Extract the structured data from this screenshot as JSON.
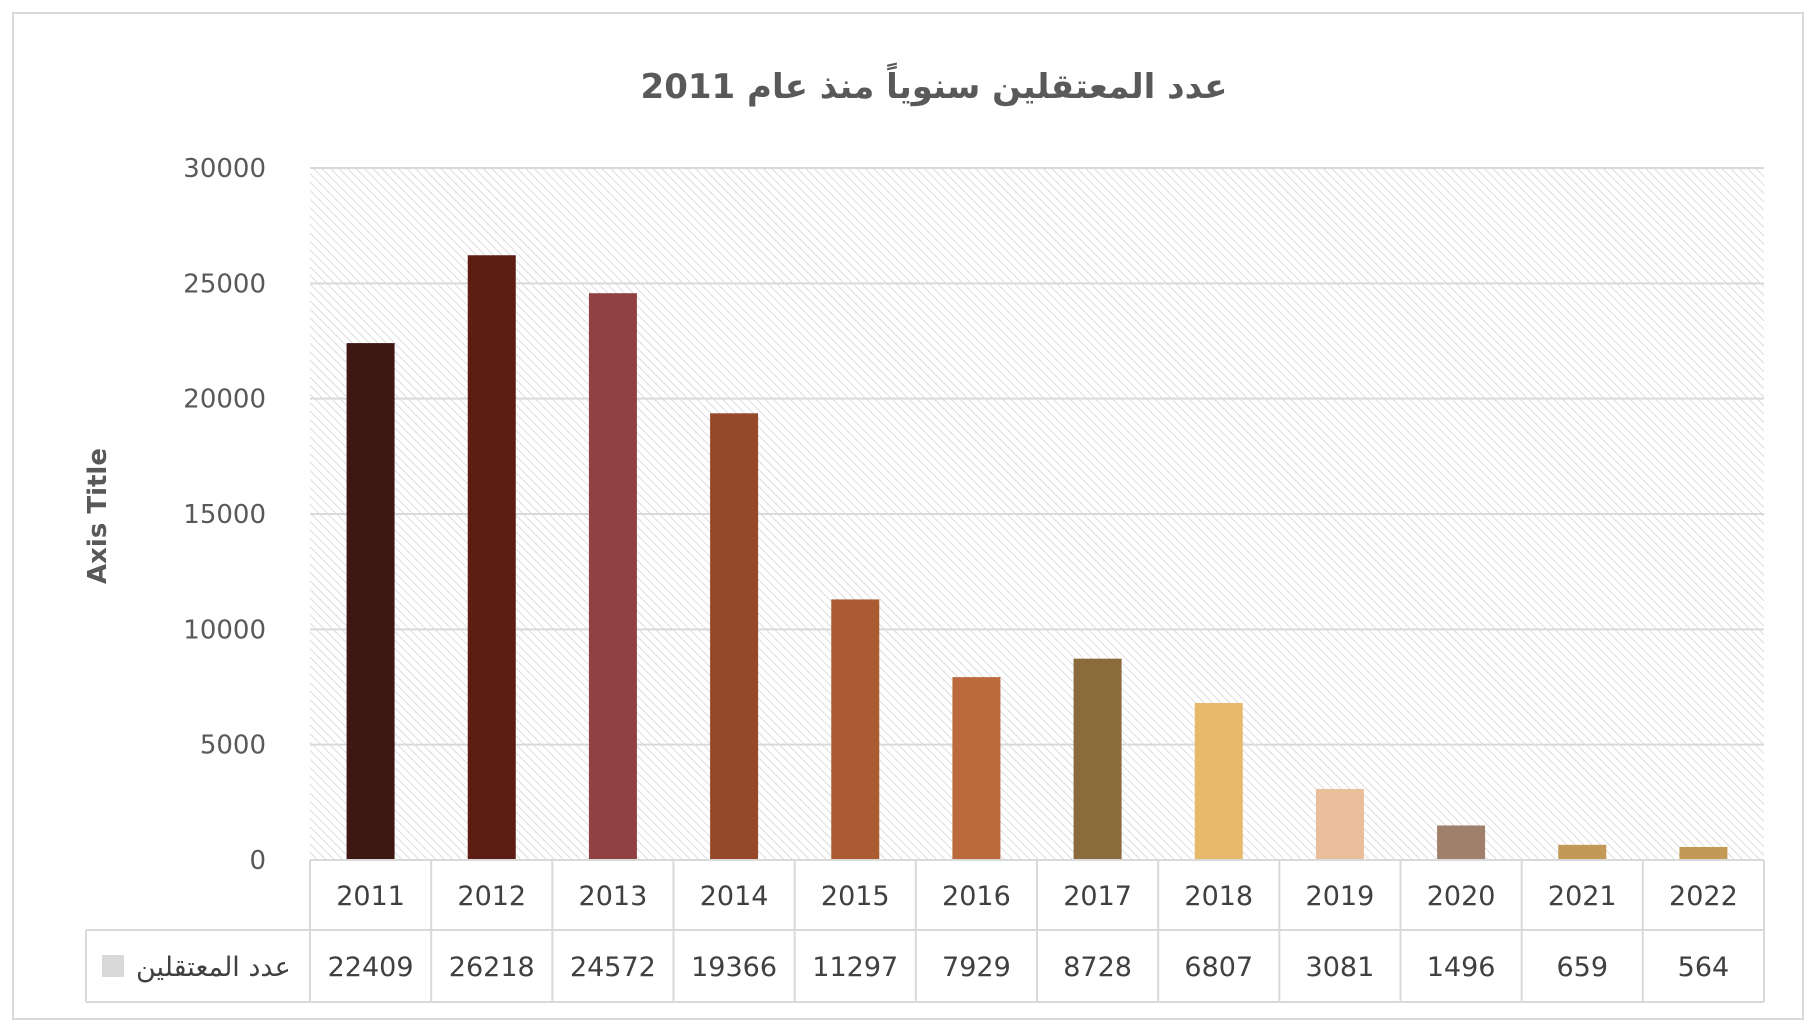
{
  "chart_data": {
    "type": "bar",
    "title": "عدد المعتقلين سنوياً منذ عام 2011",
    "xlabel": "",
    "ylabel": "Axis Title",
    "ylim": [
      0,
      30000
    ],
    "yticks": [
      0,
      5000,
      10000,
      15000,
      20000,
      25000,
      30000
    ],
    "categories": [
      "2011",
      "2012",
      "2013",
      "2014",
      "2015",
      "2016",
      "2017",
      "2018",
      "2019",
      "2020",
      "2021",
      "2022"
    ],
    "series": [
      {
        "name": "عدد المعتقلين",
        "values": [
          22409,
          26218,
          24572,
          19366,
          11297,
          7929,
          8728,
          6807,
          3081,
          1496,
          659,
          564
        ],
        "colors": [
          "#3e1614",
          "#5c1d15",
          "#8f4143",
          "#96492a",
          "#ab5b32",
          "#bb6a3d",
          "#8b6a3b",
          "#e8b86b",
          "#e9be9a",
          "#a0806a",
          "#c29a55",
          "#c29a55"
        ]
      }
    ],
    "grid": true,
    "data_table": true,
    "legend": "data-table",
    "legend_color": "#d9d9d9"
  }
}
